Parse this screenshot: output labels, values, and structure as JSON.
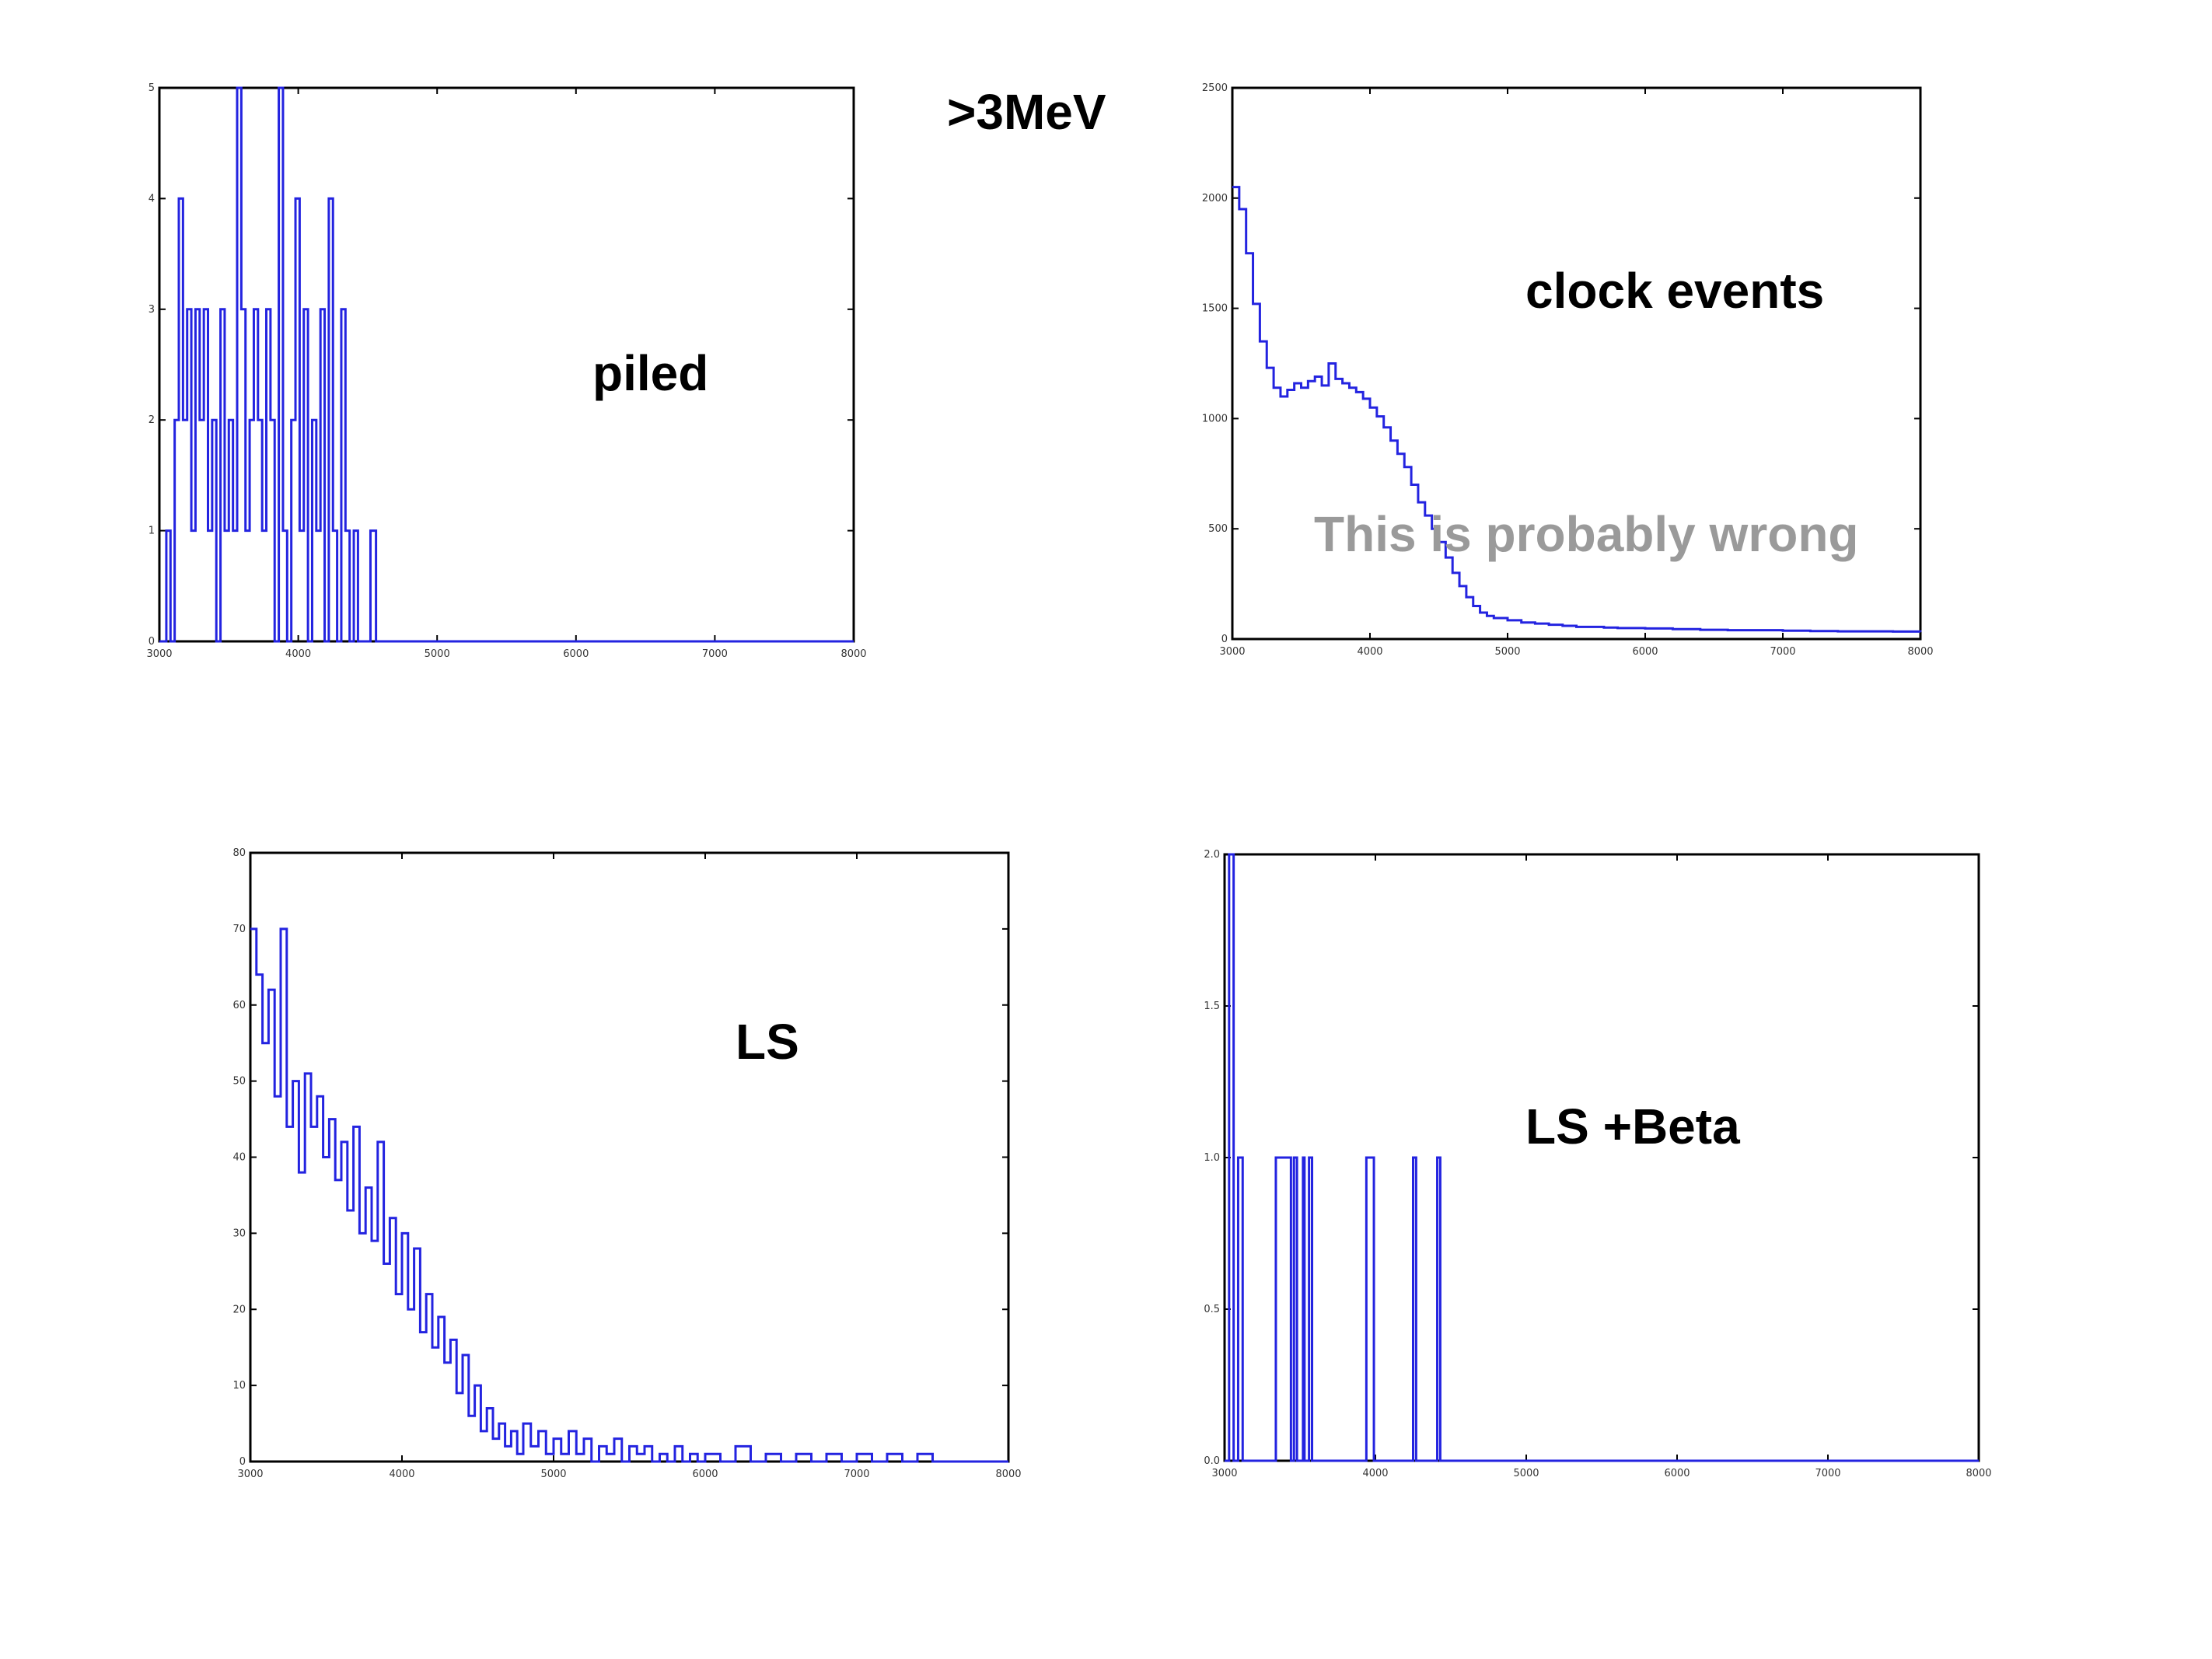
{
  "heading": ">3MeV",
  "colors": {
    "series": "#2323e0",
    "axis": "#000000",
    "note": "#9a9a9a"
  },
  "chart_data": [
    {
      "id": "piled",
      "type": "line",
      "title": "piled",
      "xlim": [
        3000,
        8000
      ],
      "ylim": [
        0,
        5
      ],
      "xticks": [
        3000,
        4000,
        5000,
        6000,
        7000,
        8000
      ],
      "yticks": [
        0,
        1,
        2,
        3,
        4,
        5
      ],
      "xticklabels": [
        "3000",
        "4000",
        "5000",
        "6000",
        "7000",
        "8000"
      ],
      "yticklabels": [
        "0",
        "1",
        "2",
        "3",
        "4",
        "5"
      ],
      "series": [
        {
          "x": [
            3000,
            3050,
            3080,
            3110,
            3140,
            3170,
            3200,
            3230,
            3260,
            3290,
            3320,
            3350,
            3380,
            3410,
            3440,
            3470,
            3500,
            3530,
            3560,
            3590,
            3620,
            3650,
            3680,
            3710,
            3740,
            3770,
            3800,
            3830,
            3860,
            3890,
            3920,
            3950,
            3980,
            4010,
            4040,
            4070,
            4100,
            4130,
            4160,
            4190,
            4220,
            4250,
            4280,
            4310,
            4340,
            4370,
            4400,
            4430,
            4460,
            4490,
            4520,
            4560,
            4600,
            4650,
            4700,
            4800,
            5000,
            6000,
            7000,
            8000
          ],
          "y": [
            0,
            1,
            0,
            2,
            4,
            2,
            3,
            1,
            3,
            2,
            3,
            1,
            2,
            0,
            3,
            1,
            2,
            1,
            5,
            3,
            1,
            2,
            3,
            2,
            1,
            3,
            2,
            0,
            5,
            1,
            0,
            2,
            4,
            1,
            3,
            0,
            2,
            1,
            3,
            0,
            4,
            1,
            0,
            3,
            1,
            0,
            1,
            0,
            0,
            0,
            1,
            0,
            0,
            0,
            0,
            0,
            0,
            0,
            0,
            0
          ]
        }
      ]
    },
    {
      "id": "clock",
      "type": "line",
      "title": "clock events",
      "annotation": "This is probably wrong",
      "xlim": [
        3000,
        8000
      ],
      "ylim": [
        0,
        2500
      ],
      "xticks": [
        3000,
        4000,
        5000,
        6000,
        7000,
        8000
      ],
      "yticks": [
        0,
        500,
        1000,
        1500,
        2000,
        2500
      ],
      "xticklabels": [
        "3000",
        "4000",
        "5000",
        "6000",
        "7000",
        "8000"
      ],
      "yticklabels": [
        "0",
        "500",
        "1000",
        "1500",
        "2000",
        "2500"
      ],
      "series": [
        {
          "x": [
            3000,
            3050,
            3100,
            3150,
            3200,
            3250,
            3300,
            3350,
            3400,
            3450,
            3500,
            3550,
            3600,
            3650,
            3700,
            3750,
            3800,
            3850,
            3900,
            3950,
            4000,
            4050,
            4100,
            4150,
            4200,
            4250,
            4300,
            4350,
            4400,
            4450,
            4500,
            4550,
            4600,
            4650,
            4700,
            4750,
            4800,
            4850,
            4900,
            5000,
            5100,
            5200,
            5300,
            5400,
            5500,
            5600,
            5700,
            5800,
            5900,
            6000,
            6200,
            6400,
            6600,
            6800,
            7000,
            7200,
            7400,
            7600,
            7800,
            8000
          ],
          "y": [
            2050,
            1950,
            1750,
            1520,
            1350,
            1230,
            1140,
            1100,
            1130,
            1160,
            1140,
            1170,
            1190,
            1150,
            1250,
            1180,
            1160,
            1140,
            1120,
            1090,
            1050,
            1010,
            960,
            900,
            840,
            780,
            700,
            620,
            560,
            500,
            440,
            370,
            300,
            240,
            190,
            150,
            120,
            105,
            95,
            85,
            75,
            70,
            65,
            60,
            55,
            55,
            52,
            50,
            50,
            48,
            45,
            42,
            40,
            40,
            38,
            36,
            35,
            35,
            34,
            33
          ]
        }
      ]
    },
    {
      "id": "ls",
      "type": "line",
      "title": "LS",
      "xlim": [
        3000,
        8000
      ],
      "ylim": [
        0,
        80
      ],
      "xticks": [
        3000,
        4000,
        5000,
        6000,
        7000,
        8000
      ],
      "yticks": [
        0,
        10,
        20,
        30,
        40,
        50,
        60,
        70,
        80
      ],
      "xticklabels": [
        "3000",
        "4000",
        "5000",
        "6000",
        "7000",
        "8000"
      ],
      "yticklabels": [
        "0",
        "10",
        "20",
        "30",
        "40",
        "50",
        "60",
        "70",
        "80"
      ],
      "series": [
        {
          "x": [
            3000,
            3040,
            3080,
            3120,
            3160,
            3200,
            3240,
            3280,
            3320,
            3360,
            3400,
            3440,
            3480,
            3520,
            3560,
            3600,
            3640,
            3680,
            3720,
            3760,
            3800,
            3840,
            3880,
            3920,
            3960,
            4000,
            4040,
            4080,
            4120,
            4160,
            4200,
            4240,
            4280,
            4320,
            4360,
            4400,
            4440,
            4480,
            4520,
            4560,
            4600,
            4640,
            4680,
            4720,
            4760,
            4800,
            4850,
            4900,
            4950,
            5000,
            5050,
            5100,
            5150,
            5200,
            5250,
            5300,
            5350,
            5400,
            5450,
            5500,
            5550,
            5600,
            5650,
            5700,
            5750,
            5800,
            5850,
            5900,
            5950,
            6000,
            6100,
            6200,
            6300,
            6400,
            6500,
            6600,
            6700,
            6800,
            6900,
            7000,
            7100,
            7200,
            7300,
            7400,
            7500,
            7600,
            8000
          ],
          "y": [
            70,
            64,
            55,
            62,
            48,
            70,
            44,
            50,
            38,
            51,
            44,
            48,
            40,
            45,
            37,
            42,
            33,
            44,
            30,
            36,
            29,
            42,
            26,
            32,
            22,
            30,
            20,
            28,
            17,
            22,
            15,
            19,
            13,
            16,
            9,
            14,
            6,
            10,
            4,
            7,
            3,
            5,
            2,
            4,
            1,
            5,
            2,
            4,
            1,
            3,
            1,
            4,
            1,
            3,
            0,
            2,
            1,
            3,
            0,
            2,
            1,
            2,
            0,
            1,
            0,
            2,
            0,
            1,
            0,
            1,
            0,
            2,
            0,
            1,
            0,
            1,
            0,
            1,
            0,
            1,
            0,
            1,
            0,
            1,
            0,
            0,
            0
          ]
        }
      ]
    },
    {
      "id": "lsbeta",
      "type": "line",
      "title": "LS +Beta",
      "xlim": [
        3000,
        8000
      ],
      "ylim": [
        0,
        2.0
      ],
      "xticks": [
        3000,
        4000,
        5000,
        6000,
        7000,
        8000
      ],
      "yticks": [
        0,
        0.5,
        1.0,
        1.5,
        2.0
      ],
      "xticklabels": [
        "3000",
        "4000",
        "5000",
        "6000",
        "7000",
        "8000"
      ],
      "yticklabels": [
        "0.0",
        "0.5",
        "1.0",
        "1.5",
        "2.0"
      ],
      "series": [
        {
          "x": [
            3000,
            3030,
            3060,
            3090,
            3120,
            3340,
            3350,
            3360,
            3390,
            3440,
            3460,
            3480,
            3520,
            3530,
            3560,
            3580,
            3940,
            3950,
            3990,
            4000,
            4250,
            4270,
            4410,
            4430,
            4450,
            8000
          ],
          "y": [
            0,
            2,
            0,
            1,
            0,
            1,
            1,
            1,
            1,
            0,
            1,
            0,
            1,
            0,
            1,
            0,
            1,
            1,
            0,
            0,
            1,
            0,
            1,
            0,
            0,
            0
          ]
        }
      ]
    }
  ]
}
